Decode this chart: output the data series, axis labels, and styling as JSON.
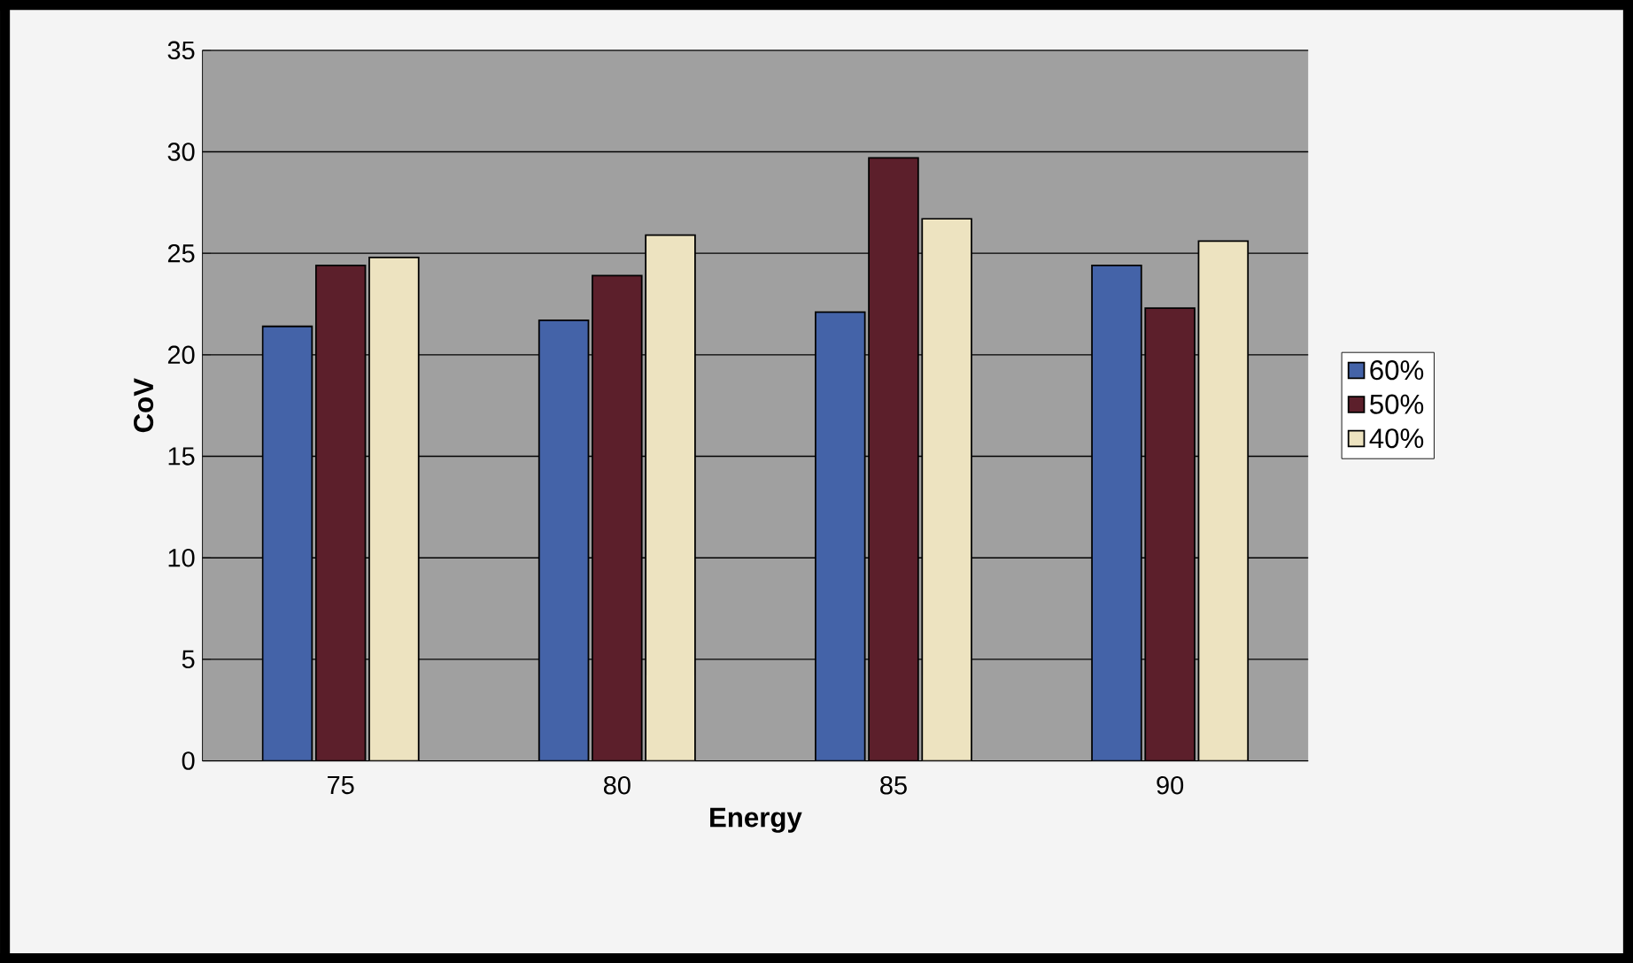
{
  "chart_data": {
    "type": "bar",
    "xlabel": "Energy",
    "ylabel": "CoV",
    "categories": [
      "75",
      "80",
      "85",
      "90"
    ],
    "series": [
      {
        "name": "60%",
        "color": "#4463a8",
        "values": [
          21.4,
          21.7,
          22.1,
          24.4
        ]
      },
      {
        "name": "50%",
        "color": "#5c1f2b",
        "values": [
          24.4,
          23.9,
          29.7,
          22.3
        ]
      },
      {
        "name": "40%",
        "color": "#ede3c0",
        "values": [
          24.8,
          25.9,
          26.7,
          25.6
        ]
      }
    ],
    "ylim": [
      0,
      35
    ],
    "yticks": [
      0,
      5,
      10,
      15,
      20,
      25,
      30,
      35
    ],
    "grid": "y",
    "legend": "right"
  }
}
